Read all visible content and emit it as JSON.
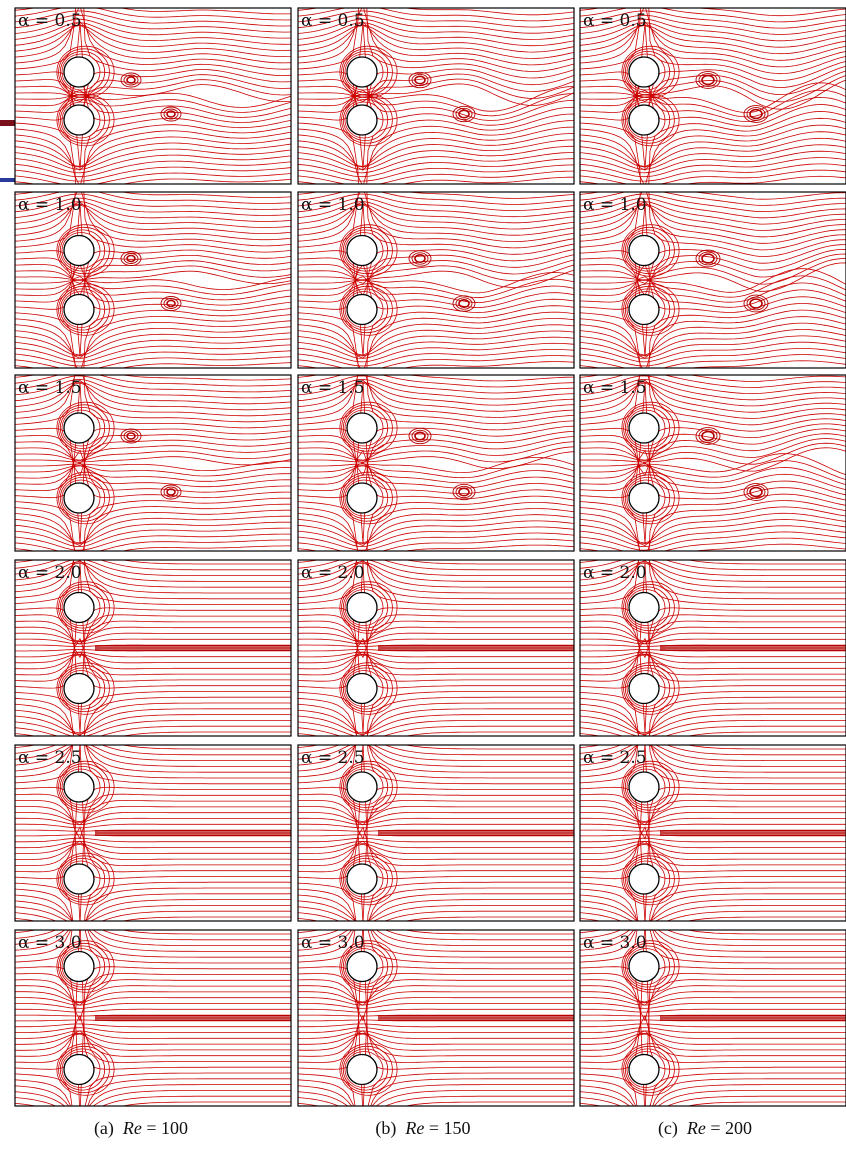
{
  "figure": {
    "row_labels": [
      "α = 0.5",
      "α = 1.0",
      "α = 1.5",
      "α = 2.0",
      "α = 2.5",
      "α = 3.0"
    ],
    "columns": [
      {
        "letter": "(a)",
        "re_label": "Re",
        "re_value": "= 100"
      },
      {
        "letter": "(b)",
        "re_label": "Re",
        "re_value": "= 150"
      },
      {
        "letter": "(c)",
        "re_label": "Re",
        "re_value": "= 200"
      }
    ],
    "colors": {
      "streamline": "#cc0000",
      "vortex": "#b30000",
      "frame": "#000000",
      "cylinder": "#000000"
    }
  }
}
